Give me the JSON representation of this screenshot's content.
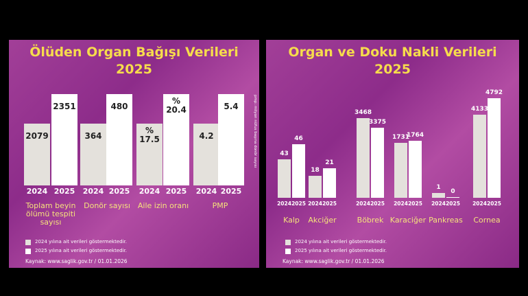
{
  "chart_data": [
    {
      "type": "bar",
      "title": "Ölüden Organ Bağışı Verileri",
      "subtitle": "2025",
      "categories": [
        "Toplam beyin ölümü tespiti sayısı",
        "Donör sayısı",
        "Aile izin oranı",
        "PMP"
      ],
      "series": [
        {
          "name": "2024",
          "color": "#e4e1dc",
          "values": [
            2079,
            364,
            17.5,
            4.2
          ],
          "value_labels": [
            "2079",
            "364",
            "%\n17.5",
            "4.2"
          ]
        },
        {
          "name": "2025",
          "color": "#ffffff",
          "values": [
            2351,
            480,
            20.4,
            5.4
          ],
          "value_labels": [
            "2351",
            "480",
            "%\n20.4",
            "5.4"
          ]
        }
      ],
      "note": "pmp: milyon nüfus başına donör sayısı",
      "legend_texts": [
        "2024 yılına ait verileri göstermektedir.",
        "2025 yılına ait verileri göstermektedir."
      ],
      "source": "Kaynak: www.saglik.gov.tr / 01.01.2026"
    },
    {
      "type": "bar",
      "title": "Organ ve Doku Nakli Verileri",
      "subtitle": "2025",
      "categories": [
        "Kalp",
        "Akciğer",
        "Böbrek",
        "Karaciğer",
        "Pankreas",
        "Cornea"
      ],
      "series": [
        {
          "name": "2024",
          "color": "#e4e1dc",
          "values": [
            43,
            18,
            3468,
            1731,
            1,
            4133
          ]
        },
        {
          "name": "2025",
          "color": "#ffffff",
          "values": [
            46,
            21,
            3375,
            1764,
            0,
            4792
          ]
        }
      ],
      "legend_texts": [
        "2024 yılına ait verileri göstermektedir.",
        "2025 yılına ait verileri göstermektedir."
      ],
      "source": "Kaynak: www.saglik.gov.tr / 01.01.2026"
    }
  ]
}
